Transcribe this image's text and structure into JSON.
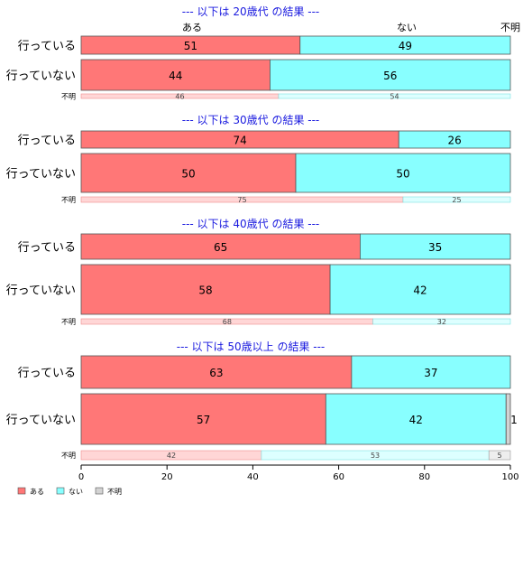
{
  "chart_data": {
    "type": "bar",
    "orientation": "horizontal",
    "stacked": true,
    "xlim": [
      0,
      100
    ],
    "x_ticks": [
      0,
      20,
      40,
      60,
      80,
      100
    ],
    "series": [
      {
        "name": "ある",
        "color": "#FF7777"
      },
      {
        "name": "ない",
        "color": "#88FFFF"
      },
      {
        "name": "不明",
        "color": "#D3D3D3"
      }
    ],
    "header_labels": [
      "ある",
      "ない",
      "不明"
    ],
    "legend": {
      "position": "bottom-left",
      "labels": [
        "ある",
        "ない",
        "不明"
      ]
    },
    "panels": [
      {
        "title": "--- 以下は 20歳代 の結果 ---",
        "rows": [
          {
            "label": "行っている",
            "values": [
              51,
              49,
              0
            ],
            "size": "big"
          },
          {
            "label": "行っていない",
            "values": [
              44,
              56,
              0
            ],
            "size": "big"
          },
          {
            "label": "不明",
            "values": [
              46,
              54,
              0
            ],
            "size": "small"
          }
        ]
      },
      {
        "title": "--- 以下は 30歳代 の結果 ---",
        "rows": [
          {
            "label": "行っている",
            "values": [
              74,
              26,
              0
            ],
            "size": "big"
          },
          {
            "label": "行っていない",
            "values": [
              50,
              50,
              0
            ],
            "size": "big"
          },
          {
            "label": "不明",
            "values": [
              75,
              25,
              0
            ],
            "size": "small"
          }
        ]
      },
      {
        "title": "--- 以下は 40歳代 の結果 ---",
        "rows": [
          {
            "label": "行っている",
            "values": [
              65,
              35,
              0
            ],
            "size": "big"
          },
          {
            "label": "行っていない",
            "values": [
              58,
              42,
              0
            ],
            "size": "big"
          },
          {
            "label": "不明",
            "values": [
              68,
              32,
              0
            ],
            "size": "small"
          }
        ]
      },
      {
        "title": "--- 以下は 50歳以上 の結果 ---",
        "rows": [
          {
            "label": "行っている",
            "values": [
              63,
              37,
              0
            ],
            "size": "big"
          },
          {
            "label": "行っていない",
            "values": [
              57,
              42,
              1
            ],
            "size": "big"
          },
          {
            "label": "不明",
            "values": [
              42,
              53,
              5
            ],
            "size": "small"
          }
        ]
      }
    ]
  }
}
